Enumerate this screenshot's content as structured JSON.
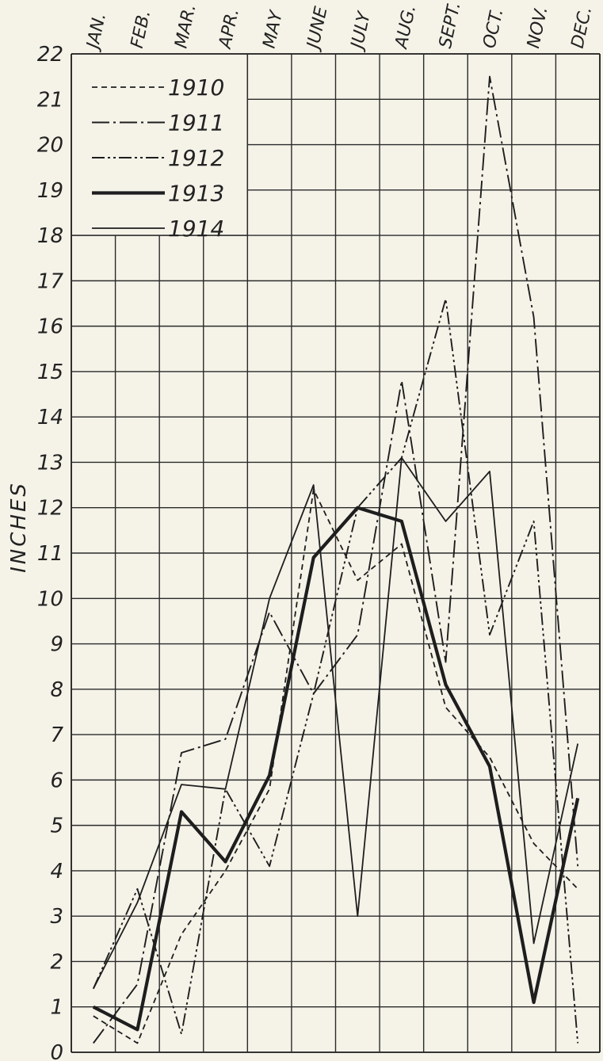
{
  "chart_data": {
    "type": "line",
    "title": "",
    "ylabel": "INCHES",
    "xlabel": "",
    "categories": [
      "JAN.",
      "FEB.",
      "MAR.",
      "APR.",
      "MAY",
      "JUNE",
      "JULY",
      "AUG.",
      "SEPT.",
      "OCT.",
      "NOV.",
      "DEC."
    ],
    "y_ticks": [
      "0",
      "1",
      "2",
      "3",
      "4",
      "5",
      "6",
      "7",
      "8",
      "9",
      "10",
      "11",
      "12",
      "13",
      "14",
      "15",
      "16",
      "17",
      "18",
      "19",
      "20",
      "21",
      "22"
    ],
    "ylim": [
      0,
      22
    ],
    "grid": true,
    "legend_position": "top-left",
    "series": [
      {
        "name": "1910",
        "style": "dashed",
        "values": [
          0.8,
          0.2,
          2.6,
          4.0,
          5.8,
          12.4,
          10.4,
          11.2,
          7.6,
          6.5,
          4.6,
          3.6
        ]
      },
      {
        "name": "1911",
        "style": "dash-dot",
        "values": [
          0.2,
          1.5,
          6.6,
          6.9,
          9.7,
          7.9,
          9.2,
          14.8,
          8.6,
          21.5,
          16.2,
          4.1
        ]
      },
      {
        "name": "1912",
        "style": "dash-dot-dot",
        "values": [
          1.4,
          3.6,
          0.4,
          5.8,
          4.1,
          7.9,
          12.0,
          13.1,
          16.6,
          9.2,
          11.7,
          0.2
        ]
      },
      {
        "name": "1913",
        "style": "heavy",
        "values": [
          1.0,
          0.5,
          5.3,
          4.2,
          6.1,
          10.9,
          12.0,
          11.7,
          8.1,
          6.3,
          1.1,
          5.6
        ]
      },
      {
        "name": "1914",
        "style": "solid",
        "values": [
          1.4,
          3.3,
          5.9,
          5.8,
          10.0,
          12.5,
          3.0,
          13.1,
          11.7,
          12.8,
          2.4,
          6.8
        ]
      }
    ]
  }
}
